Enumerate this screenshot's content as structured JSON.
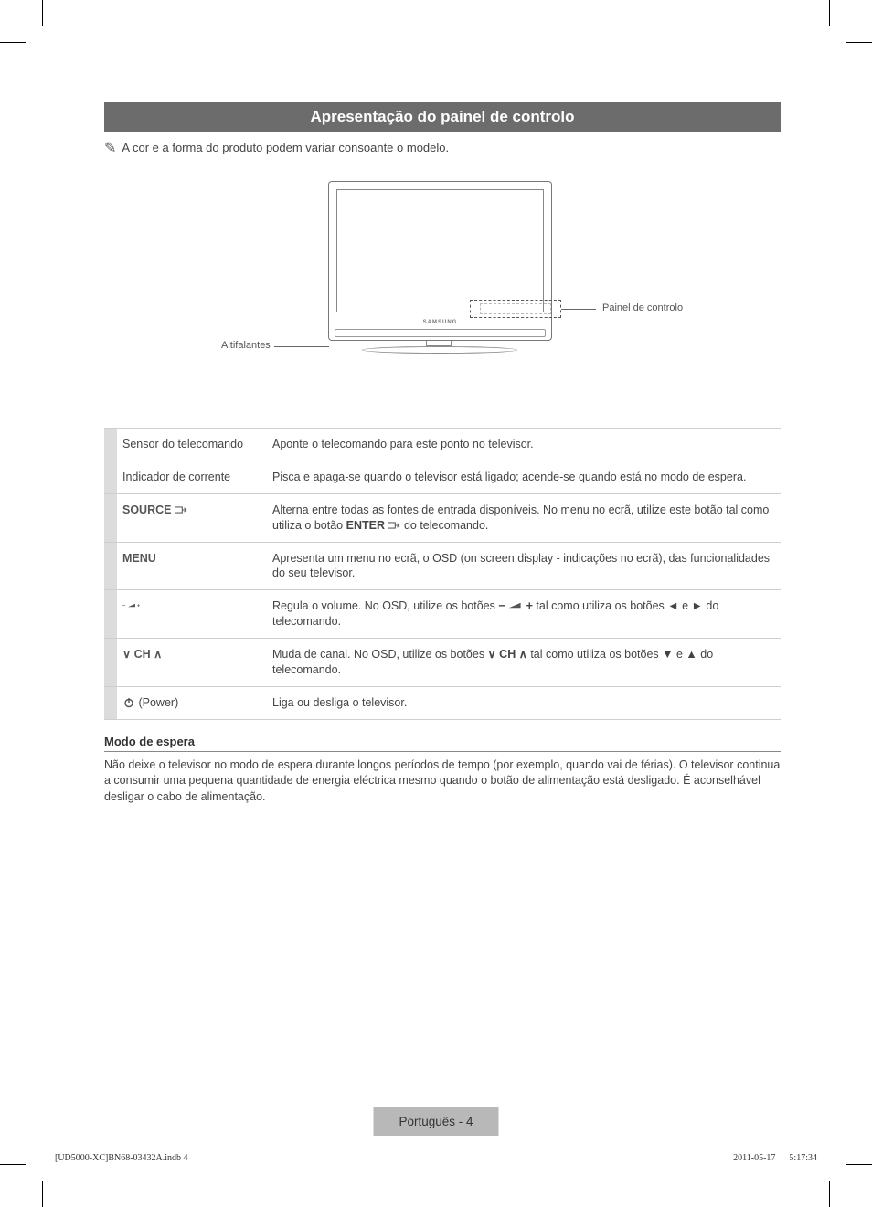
{
  "title": "Apresentação do painel de controlo",
  "note_text": "A cor e a forma do produto podem variar consoante o modelo.",
  "figure": {
    "logo": "SAMSUNG",
    "control_panel_label": "Painel de controlo",
    "speakers_label": "Altifalantes"
  },
  "rows": [
    {
      "label_html": "Sensor do telecomando",
      "desc_html": "Aponte o telecomando para este ponto no televisor."
    },
    {
      "label_html": "Indicador de corrente",
      "desc_html": "Pisca e apaga-se quando o televisor está ligado; acende-se quando está no modo de espera."
    },
    {
      "label_html": "<span class=\"blabel\">SOURCE <svg class=\"sm\" viewBox=\"0 0 16 12\"><rect x=\"0.5\" y=\"2.5\" width=\"9\" height=\"7\" fill=\"none\" stroke=\"#555\" stroke-width=\"1.2\"/><path d=\"M9.5 6 H14 M12 3.5 L14.5 6 L12 8.5\" fill=\"none\" stroke=\"#555\" stroke-width=\"1.2\"/></svg></span>",
      "desc_html": "Alterna entre todas as fontes de entrada disponíveis. No menu no ecrã, utilize este botão tal como utiliza o botão <b>ENTER</b> <svg class=\"sm\" viewBox=\"0 0 16 12\"><rect x=\"0.5\" y=\"2.5\" width=\"9\" height=\"7\" fill=\"none\" stroke=\"#555\" stroke-width=\"1.2\"/><path d=\"M9.5 6 H14 M12 3.5 L14.5 6 L12 8.5\" fill=\"none\" stroke=\"#555\" stroke-width=\"1.2\"/></svg> do telecomando."
    },
    {
      "label_html": "<span class=\"blabel\">MENU</span>",
      "desc_html": "Apresenta um menu no ecrã, o OSD (on screen display - indicações no ecrã), das funcionalidades do seu televisor."
    },
    {
      "label_html": "<span class=\"blabel\"><svg class=\"smw\" viewBox=\"0 0 44 11\"><text x=\"0\" y=\"9\" font-size=\"11\" font-weight=\"bold\" fill=\"#555\">&#8722;</text><path d=\"M12 9 L28 9 L28 2 Z\" fill=\"#555\"/><text x=\"32\" y=\"9\" font-size=\"11\" font-weight=\"bold\" fill=\"#555\">+</text></svg></span>",
      "desc_html": "Regula o volume. No OSD, utilize os botões <b>&#8722;</b> <svg class=\"smw\" viewBox=\"0 0 20 11\" style=\"width:16px\"><path d=\"M1 9 L17 9 L17 2 Z\" fill=\"#555\"/></svg> <b>+</b> tal como utiliza os botões ◄ e ► do telecomando."
    },
    {
      "label_html": "<span class=\"blabel\">&#8744; CH &#8743;</span>",
      "desc_html": "Muda de canal. No OSD, utilize os botões <b>&#8744; CH &#8743;</b> tal como utiliza os botões ▼ e ▲ do telecomando."
    },
    {
      "label_html": "<svg class=\"sm\" viewBox=\"0 0 12 12\"><circle cx=\"6\" cy=\"6.5\" r=\"4\" fill=\"none\" stroke=\"#555\" stroke-width=\"1.4\"/><line x1=\"6\" y1=\"1\" x2=\"6\" y2=\"6\" stroke=\"#555\" stroke-width=\"1.4\"/></svg> (Power)",
      "desc_html": "Liga ou desliga o televisor."
    }
  ],
  "standby": {
    "heading": "Modo de espera",
    "body": "Não deixe o televisor no modo de espera durante longos períodos de tempo (por exemplo, quando vai de férias). O televisor continua a consumir uma pequena quantidade de energia eléctrica mesmo quando o botão de alimentação está desligado. É aconselhável desligar o cabo de alimentação."
  },
  "footer": {
    "text": "Português - 4",
    "print_left": "[UD5000-XC]BN68-03432A.indb   4",
    "print_right": "2011-05-17      5:17:34"
  }
}
